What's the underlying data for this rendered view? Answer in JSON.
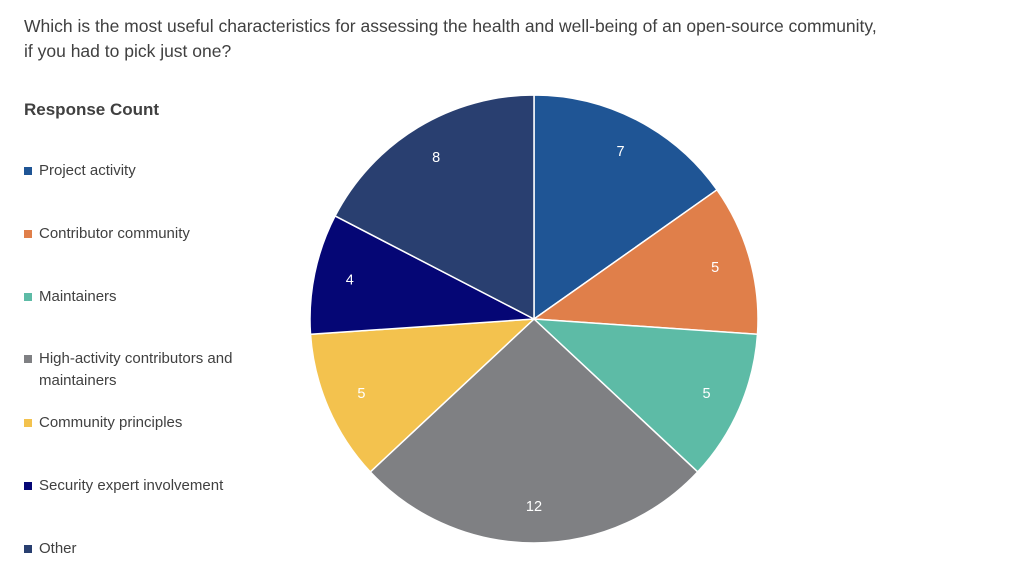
{
  "question": "Which is the most useful characteristics for assessing the health and well-being of an open-source community, if you had to pick just one?",
  "chart_data": {
    "type": "pie",
    "title": "Response Count",
    "categories": [
      "Project activity",
      "Contributor community",
      "Maintainers",
      "High-activity contributors and maintainers",
      "Community principles",
      "Security expert involvement",
      "Other"
    ],
    "values": [
      7,
      5,
      5,
      12,
      5,
      4,
      8
    ],
    "colors": [
      "#1f5595",
      "#e07f4a",
      "#5dbba6",
      "#7f8083",
      "#f3c24e",
      "#050675",
      "#293f70"
    ],
    "legend_position": "left",
    "start_angle": "12 o'clock",
    "direction": "clockwise"
  }
}
